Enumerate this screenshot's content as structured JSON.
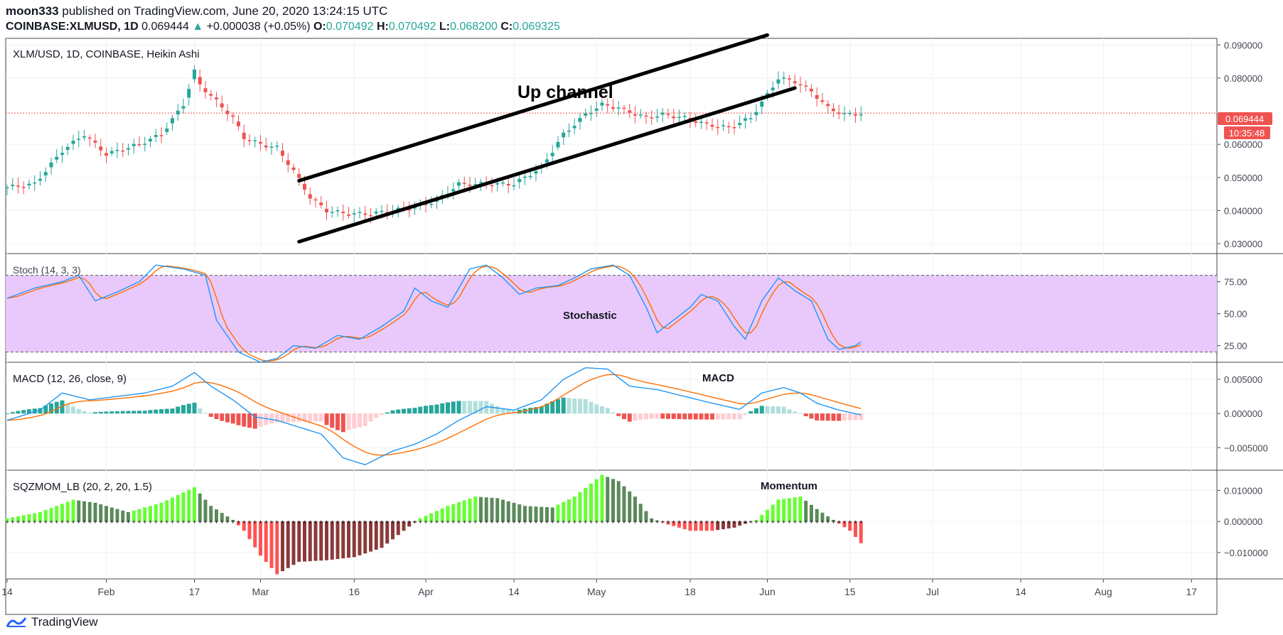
{
  "header": {
    "user": "moon333",
    "published": "published on TradingView.com, June 20, 2020 13:24:15 UTC",
    "symbol": "COINBASE:XLMUSD, 1D",
    "last": "0.069444",
    "change_arrow": "▲",
    "change": "+0.000038 (+0.05%)",
    "o_label": "O:",
    "o": "0.070492",
    "h_label": "H:",
    "h": "0.070492",
    "l_label": "L:",
    "l": "0.068200",
    "c_label": "C:",
    "c": "0.069325"
  },
  "footer": {
    "brand": "TradingView"
  },
  "colors": {
    "up": "#26a69a",
    "down": "#ef5350",
    "stoch_fill": "#e9c9fb",
    "k_line": "#2196f3",
    "d_line": "#ff6d00",
    "lime": "#66ff33",
    "darkgreen": "#5b8a5b",
    "red": "#ff5252",
    "maroon": "#8b3a3a",
    "pink": "#ffcdd2",
    "teal_light": "#b2dfdb"
  },
  "chart_data": [
    {
      "type": "candlestick",
      "title": "XLM/USD, 1D, COINBASE, Heikin Ashi",
      "ylim": [
        0.027,
        0.092
      ],
      "y_ticks": [
        "0.090000",
        "0.080000",
        "0.060000",
        "0.050000",
        "0.040000",
        "0.030000"
      ],
      "y_tick_values": [
        0.09,
        0.08,
        0.06,
        0.05,
        0.04,
        0.03
      ],
      "last_price_label": "0.069444",
      "last_price": 0.069444,
      "countdown_label": "10:35:48",
      "annotation": "Up channel",
      "channel_upper": [
        [
          0.049,
          0.093
        ],
        [
          0.0306,
          0.077
        ]
      ],
      "x_labels": [
        "14",
        "Feb",
        "17",
        "Mar",
        "16",
        "Apr",
        "14",
        "May",
        "18",
        "Jun",
        "15",
        "Jul",
        "14",
        "Aug",
        "17"
      ],
      "x_label_days": [
        0,
        18,
        34,
        46,
        63,
        76,
        92,
        107,
        124,
        138,
        153,
        168,
        184,
        199,
        215
      ],
      "close_anchors": [
        [
          0,
          0.047
        ],
        [
          5,
          0.048
        ],
        [
          10,
          0.058
        ],
        [
          14,
          0.063
        ],
        [
          18,
          0.057
        ],
        [
          24,
          0.06
        ],
        [
          28,
          0.063
        ],
        [
          32,
          0.072
        ],
        [
          34,
          0.082
        ],
        [
          35,
          0.078
        ],
        [
          38,
          0.073
        ],
        [
          41,
          0.068
        ],
        [
          43,
          0.062
        ],
        [
          46,
          0.06
        ],
        [
          49,
          0.059
        ],
        [
          52,
          0.052
        ],
        [
          55,
          0.044
        ],
        [
          58,
          0.04
        ],
        [
          62,
          0.039
        ],
        [
          66,
          0.039
        ],
        [
          70,
          0.04
        ],
        [
          74,
          0.041
        ],
        [
          78,
          0.043
        ],
        [
          82,
          0.048
        ],
        [
          87,
          0.048
        ],
        [
          92,
          0.048
        ],
        [
          97,
          0.053
        ],
        [
          101,
          0.063
        ],
        [
          105,
          0.069
        ],
        [
          108,
          0.072
        ],
        [
          111,
          0.071
        ],
        [
          116,
          0.068
        ],
        [
          119,
          0.069
        ],
        [
          123,
          0.068
        ],
        [
          127,
          0.066
        ],
        [
          131,
          0.065
        ],
        [
          135,
          0.068
        ],
        [
          138,
          0.075
        ],
        [
          140,
          0.08
        ],
        [
          143,
          0.079
        ],
        [
          146,
          0.076
        ],
        [
          149,
          0.071
        ],
        [
          152,
          0.069
        ],
        [
          155,
          0.0693
        ]
      ]
    },
    {
      "type": "line",
      "title": "Stoch (14, 3, 3)",
      "annotation": "Stochastic",
      "ylim": [
        12,
        97
      ],
      "y_ticks": [
        "75.00",
        "50.00",
        "25.00"
      ],
      "y_tick_values": [
        75,
        50,
        25
      ],
      "band": [
        20,
        80
      ],
      "k_anchors": [
        [
          0,
          62
        ],
        [
          5,
          70
        ],
        [
          10,
          75
        ],
        [
          13,
          80
        ],
        [
          16,
          60
        ],
        [
          20,
          67
        ],
        [
          24,
          75
        ],
        [
          27,
          88
        ],
        [
          32,
          85
        ],
        [
          36,
          80
        ],
        [
          38,
          45
        ],
        [
          42,
          20
        ],
        [
          46,
          12
        ],
        [
          49,
          15
        ],
        [
          52,
          25
        ],
        [
          56,
          23
        ],
        [
          60,
          33
        ],
        [
          64,
          30
        ],
        [
          68,
          40
        ],
        [
          72,
          52
        ],
        [
          74,
          70
        ],
        [
          77,
          60
        ],
        [
          80,
          55
        ],
        [
          84,
          85
        ],
        [
          87,
          88
        ],
        [
          90,
          78
        ],
        [
          93,
          65
        ],
        [
          96,
          70
        ],
        [
          100,
          72
        ],
        [
          103,
          78
        ],
        [
          106,
          85
        ],
        [
          110,
          88
        ],
        [
          113,
          80
        ],
        [
          116,
          55
        ],
        [
          118,
          35
        ],
        [
          121,
          45
        ],
        [
          124,
          55
        ],
        [
          126,
          65
        ],
        [
          129,
          60
        ],
        [
          132,
          40
        ],
        [
          134,
          30
        ],
        [
          137,
          60
        ],
        [
          140,
          78
        ],
        [
          143,
          68
        ],
        [
          146,
          60
        ],
        [
          149,
          30
        ],
        [
          151,
          22
        ],
        [
          154,
          25
        ],
        [
          155,
          28
        ]
      ]
    },
    {
      "type": "line+histogram",
      "title": "MACD (12, 26, close, 9)",
      "annotation": "MACD",
      "ylim": [
        -0.0083,
        0.0075
      ],
      "y_ticks": [
        "0.005000",
        "0.000000",
        "−0.005000"
      ],
      "y_tick_values": [
        0.005,
        0.0,
        -0.005
      ],
      "macd_anchors": [
        [
          0,
          -0.001
        ],
        [
          6,
          0.0005
        ],
        [
          10,
          0.003
        ],
        [
          15,
          0.002
        ],
        [
          20,
          0.0025
        ],
        [
          25,
          0.003
        ],
        [
          30,
          0.004
        ],
        [
          34,
          0.006
        ],
        [
          37,
          0.004
        ],
        [
          41,
          0.002
        ],
        [
          45,
          -0.0005
        ],
        [
          49,
          -0.001
        ],
        [
          53,
          -0.002
        ],
        [
          57,
          -0.003
        ],
        [
          61,
          -0.0065
        ],
        [
          65,
          -0.0075
        ],
        [
          70,
          -0.0055
        ],
        [
          74,
          -0.0045
        ],
        [
          78,
          -0.003
        ],
        [
          82,
          -0.001
        ],
        [
          87,
          0.001
        ],
        [
          92,
          0.0005
        ],
        [
          97,
          0.002
        ],
        [
          101,
          0.005
        ],
        [
          105,
          0.0067
        ],
        [
          109,
          0.0065
        ],
        [
          113,
          0.004
        ],
        [
          118,
          0.0035
        ],
        [
          123,
          0.0025
        ],
        [
          128,
          0.0015
        ],
        [
          133,
          0.0006
        ],
        [
          137,
          0.003
        ],
        [
          141,
          0.0038
        ],
        [
          144,
          0.003
        ],
        [
          147,
          0.0015
        ],
        [
          151,
          0.0005
        ],
        [
          155,
          -0.0002
        ]
      ]
    },
    {
      "type": "histogram",
      "title": "SQZMOM_LB (20, 2, 20, 1.5)",
      "annotation": "Momentum",
      "ylim": [
        -0.0185,
        0.0165
      ],
      "y_ticks": [
        "0.010000",
        "0.000000",
        "−0.010000"
      ],
      "y_tick_values": [
        0.01,
        0.0,
        -0.01
      ],
      "mom_anchors": [
        [
          0,
          0.001
        ],
        [
          6,
          0.003
        ],
        [
          12,
          0.007
        ],
        [
          16,
          0.006
        ],
        [
          22,
          0.003
        ],
        [
          28,
          0.006
        ],
        [
          34,
          0.011
        ],
        [
          37,
          0.005
        ],
        [
          41,
          0.0005
        ],
        [
          43,
          -0.003
        ],
        [
          46,
          -0.011
        ],
        [
          49,
          -0.017
        ],
        [
          53,
          -0.013
        ],
        [
          58,
          -0.0125
        ],
        [
          63,
          -0.0115
        ],
        [
          68,
          -0.0085
        ],
        [
          72,
          -0.003
        ],
        [
          75,
          0.001
        ],
        [
          80,
          0.005
        ],
        [
          85,
          0.008
        ],
        [
          89,
          0.0075
        ],
        [
          94,
          0.005
        ],
        [
          99,
          0.0045
        ],
        [
          103,
          0.008
        ],
        [
          108,
          0.015
        ],
        [
          111,
          0.013
        ],
        [
          114,
          0.008
        ],
        [
          117,
          0.001
        ],
        [
          120,
          -0.001
        ],
        [
          124,
          -0.003
        ],
        [
          128,
          -0.003
        ],
        [
          132,
          -0.002
        ],
        [
          136,
          0.0005
        ],
        [
          140,
          0.007
        ],
        [
          144,
          0.008
        ],
        [
          147,
          0.004
        ],
        [
          150,
          0.0005
        ],
        [
          153,
          -0.003
        ],
        [
          155,
          -0.007
        ]
      ]
    }
  ]
}
